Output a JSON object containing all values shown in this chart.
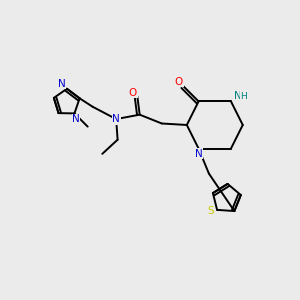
{
  "background_color": "#ebebeb",
  "bond_color": "#000000",
  "atom_colors": {
    "N": "#0000cc",
    "O": "#ff0000",
    "S": "#cccc00",
    "NH": "#008080",
    "C": "#000000"
  }
}
